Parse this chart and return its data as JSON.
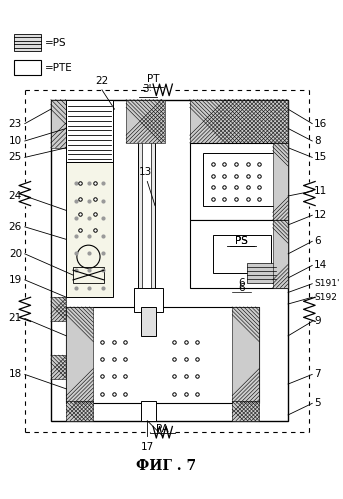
{
  "title": "ФИГ . 7",
  "legend_ps_label": "=PS",
  "legend_pte_label": "=PTE",
  "bg_color": "#ffffff",
  "line_color": "#000000",
  "gray_hatch": "#888888",
  "light_gray": "#cccccc",
  "figsize": [
    3.43,
    4.99
  ],
  "dpi": 100
}
